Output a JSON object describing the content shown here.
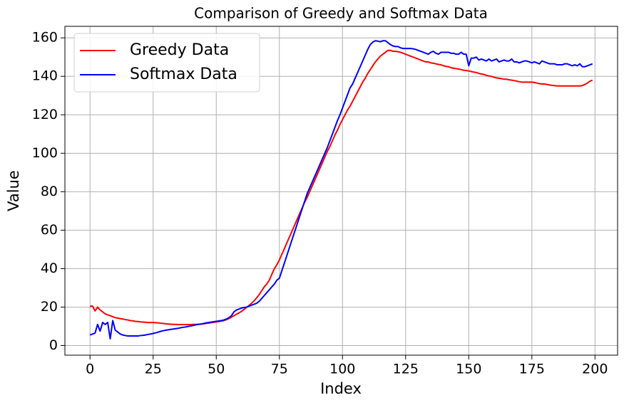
{
  "chart_data": {
    "type": "line",
    "title": "Comparison of Greedy and Softmax Data",
    "x_label": "Index",
    "y_label": "Value",
    "x": [
      0,
      1,
      2,
      3,
      4,
      5,
      6,
      7,
      8,
      9,
      10,
      11,
      12,
      13,
      14,
      15,
      16,
      17,
      18,
      19,
      20,
      21,
      22,
      23,
      24,
      25,
      26,
      27,
      28,
      29,
      30,
      31,
      32,
      33,
      34,
      35,
      36,
      37,
      38,
      39,
      40,
      41,
      42,
      43,
      44,
      45,
      46,
      47,
      48,
      49,
      50,
      51,
      52,
      53,
      54,
      55,
      56,
      57,
      58,
      59,
      60,
      61,
      62,
      63,
      64,
      65,
      66,
      67,
      68,
      69,
      70,
      71,
      72,
      73,
      74,
      75,
      76,
      77,
      78,
      79,
      80,
      81,
      82,
      83,
      84,
      85,
      86,
      87,
      88,
      89,
      90,
      91,
      92,
      93,
      94,
      95,
      96,
      97,
      98,
      99,
      100,
      101,
      102,
      103,
      104,
      105,
      106,
      107,
      108,
      109,
      110,
      111,
      112,
      113,
      114,
      115,
      116,
      117,
      118,
      119,
      120,
      121,
      122,
      123,
      124,
      125,
      126,
      127,
      128,
      129,
      130,
      131,
      132,
      133,
      134,
      135,
      136,
      137,
      138,
      139,
      140,
      141,
      142,
      143,
      144,
      145,
      146,
      147,
      148,
      149,
      150,
      151,
      152,
      153,
      154,
      155,
      156,
      157,
      158,
      159,
      160,
      161,
      162,
      163,
      164,
      165,
      166,
      167,
      168,
      169,
      170,
      171,
      172,
      173,
      174,
      175,
      176,
      177,
      178,
      179,
      180,
      181,
      182,
      183,
      184,
      185,
      186,
      187,
      188,
      189,
      190,
      191,
      192,
      193,
      194,
      195,
      196,
      197,
      198,
      199
    ],
    "series": [
      {
        "name": "Greedy Data",
        "color": "#ff0000",
        "values": [
          20.5,
          20.5,
          18,
          20,
          18.5,
          17.5,
          16.5,
          16,
          15.5,
          15,
          14.5,
          14.3,
          14,
          13.8,
          13.5,
          13.3,
          13,
          12.8,
          12.6,
          12.5,
          12.3,
          12.2,
          12.1,
          12,
          12,
          12,
          11.9,
          11.8,
          11.6,
          11.5,
          11.3,
          11.2,
          11.1,
          11,
          11,
          10.9,
          10.9,
          10.9,
          10.9,
          10.9,
          10.9,
          11,
          11,
          11.1,
          11.2,
          11.3,
          11.5,
          11.7,
          11.9,
          12.1,
          12.3,
          12.5,
          12.7,
          13,
          13.5,
          14,
          14.8,
          15.5,
          16.3,
          17,
          17.8,
          18.8,
          19.8,
          20.8,
          22,
          23.3,
          24.8,
          26.5,
          28.5,
          30.5,
          32,
          34,
          37,
          40,
          42,
          44.5,
          47.5,
          50.5,
          53.5,
          56.5,
          59.5,
          62.5,
          65.5,
          68.5,
          71.5,
          74.5,
          77,
          80,
          83,
          86,
          89,
          92,
          95,
          98,
          101,
          103.5,
          106.5,
          109.5,
          112,
          115,
          117.5,
          120,
          122.5,
          124.5,
          127,
          129.5,
          132,
          134.5,
          137,
          139,
          141.5,
          143.5,
          145.5,
          147.5,
          149,
          150.5,
          151.5,
          152.5,
          153.5,
          153.5,
          153,
          153,
          152.8,
          152.5,
          152,
          151.5,
          151,
          150.5,
          150,
          149.5,
          149,
          148.5,
          148,
          147.5,
          147.5,
          147,
          146.8,
          146.5,
          146.2,
          146,
          145.5,
          145.2,
          145,
          144.5,
          144.2,
          144,
          143.8,
          143.5,
          143.2,
          143,
          142.8,
          142.5,
          142.2,
          142,
          141.5,
          141.2,
          141,
          140.5,
          140.2,
          140,
          139.5,
          139.2,
          139,
          138.8,
          138.5,
          138.5,
          138.2,
          138,
          137.8,
          137.5,
          137.2,
          137,
          137,
          137,
          137,
          137,
          136.8,
          136.5,
          136.2,
          136,
          136,
          135.8,
          135.5,
          135.3,
          135.2,
          135,
          135,
          135,
          135,
          135,
          135,
          135,
          135,
          135,
          135,
          135.2,
          135.8,
          136.5,
          137.5,
          138
        ]
      },
      {
        "name": "Softmax Data",
        "color": "#0000ff",
        "values": [
          5.5,
          6,
          6.5,
          11,
          7.5,
          12,
          11,
          12,
          3.5,
          13,
          8,
          7,
          6,
          5.5,
          5.2,
          5,
          5,
          5,
          5,
          5,
          5.2,
          5.3,
          5.5,
          5.8,
          6,
          6.3,
          6.6,
          7,
          7.4,
          7.7,
          8,
          8.2,
          8.4,
          8.6,
          8.8,
          9,
          9.3,
          9.5,
          9.7,
          10,
          10.2,
          10.5,
          10.8,
          11,
          11.2,
          11.5,
          11.8,
          12,
          12.2,
          12.4,
          12.6,
          12.8,
          13,
          13.3,
          13.8,
          14.5,
          15.5,
          17.5,
          18.5,
          19,
          19.5,
          19.8,
          20,
          20.5,
          21,
          21.5,
          22,
          23,
          24.5,
          26,
          27.5,
          29,
          30.5,
          32,
          34,
          35,
          39,
          43,
          47,
          51,
          55,
          59,
          63,
          67,
          71,
          75,
          79,
          82,
          85,
          88,
          91,
          94,
          97,
          100,
          103,
          106.5,
          110,
          113.5,
          117,
          120,
          123.5,
          127,
          130.5,
          134,
          136,
          139,
          142,
          145,
          148,
          151,
          154,
          156.5,
          157.8,
          158.5,
          158.3,
          158,
          158.5,
          158.5,
          157.5,
          156.5,
          155.8,
          155.5,
          155.5,
          154.8,
          154.5,
          154.5,
          154.5,
          154.5,
          154.3,
          154,
          153.5,
          153,
          152.5,
          152,
          151.5,
          152.5,
          153,
          152,
          151.5,
          152.5,
          152.5,
          152.5,
          152.5,
          152,
          152,
          151.5,
          151.5,
          152.5,
          151.5,
          151.5,
          145.5,
          149.5,
          149.5,
          150,
          148.5,
          149,
          148.5,
          148,
          149,
          148,
          148.5,
          149,
          147.5,
          148,
          148.5,
          148,
          148,
          149,
          147.5,
          147.5,
          147,
          147.5,
          148,
          148,
          147.5,
          147,
          147.5,
          147,
          146.5,
          148,
          147.5,
          147,
          146.5,
          146.5,
          146.5,
          146,
          146,
          146,
          146.5,
          146.5,
          146,
          145.5,
          146,
          145.5,
          146.5,
          145,
          145,
          145.5,
          146,
          146.5
        ]
      }
    ],
    "xlim": [
      -9.95,
      208.95
    ],
    "ylim": [
      -5,
      166
    ],
    "xticks": [
      0,
      25,
      50,
      75,
      100,
      125,
      150,
      175,
      200
    ],
    "yticks": [
      0,
      20,
      40,
      60,
      80,
      100,
      120,
      140,
      160
    ],
    "grid": true,
    "legend": "upper left"
  }
}
